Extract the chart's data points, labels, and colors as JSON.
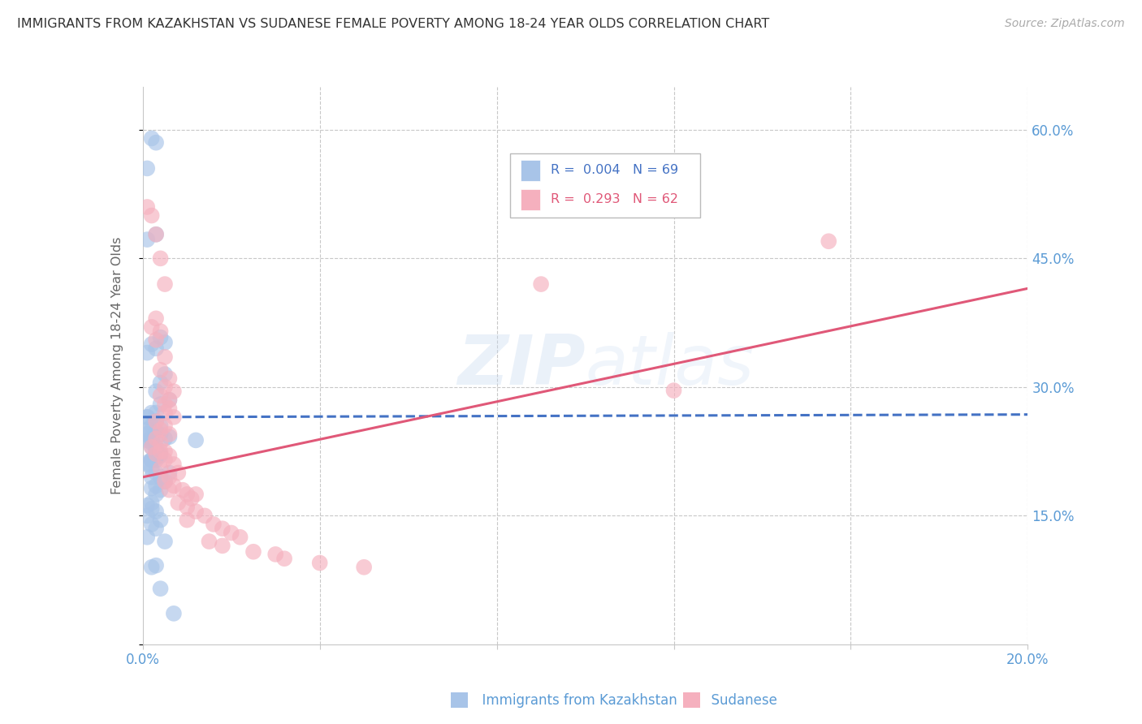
{
  "title": "IMMIGRANTS FROM KAZAKHSTAN VS SUDANESE FEMALE POVERTY AMONG 18-24 YEAR OLDS CORRELATION CHART",
  "source": "Source: ZipAtlas.com",
  "ylabel": "Female Poverty Among 18-24 Year Olds",
  "xlim": [
    0.0,
    0.2
  ],
  "ylim": [
    0.0,
    0.65
  ],
  "watermark": "ZIPatlas",
  "legend_blue_r": "0.004",
  "legend_blue_n": "69",
  "legend_pink_r": "0.293",
  "legend_pink_n": "62",
  "blue_color": "#a8c4e8",
  "pink_color": "#f5b0be",
  "blue_line_color": "#4472c4",
  "pink_line_color": "#e05878",
  "axis_label_color": "#5b9bd5",
  "grid_color": "#c8c8c8",
  "title_color": "#333333",
  "blue_trend_x": [
    0.0,
    0.2
  ],
  "blue_trend_y": [
    0.265,
    0.268
  ],
  "pink_trend_x": [
    0.0,
    0.2
  ],
  "pink_trend_y": [
    0.195,
    0.415
  ],
  "blue_scatter_x": [
    0.002,
    0.003,
    0.001,
    0.003,
    0.001,
    0.004,
    0.005,
    0.003,
    0.002,
    0.001,
    0.005,
    0.004,
    0.003,
    0.006,
    0.004,
    0.002,
    0.001,
    0.003,
    0.004,
    0.002,
    0.003,
    0.001,
    0.002,
    0.004,
    0.005,
    0.002,
    0.001,
    0.003,
    0.002,
    0.001,
    0.002,
    0.003,
    0.004,
    0.003,
    0.002,
    0.001,
    0.004,
    0.002,
    0.003,
    0.001,
    0.002,
    0.003,
    0.006,
    0.004,
    0.002,
    0.005,
    0.003,
    0.002,
    0.004,
    0.003,
    0.002,
    0.001,
    0.002,
    0.003,
    0.001,
    0.004,
    0.002,
    0.003,
    0.001,
    0.005,
    0.003,
    0.002,
    0.004,
    0.007,
    0.003,
    0.002,
    0.001,
    0.006,
    0.012
  ],
  "blue_scatter_y": [
    0.59,
    0.585,
    0.555,
    0.478,
    0.472,
    0.358,
    0.352,
    0.345,
    0.35,
    0.34,
    0.315,
    0.305,
    0.295,
    0.285,
    0.28,
    0.27,
    0.265,
    0.26,
    0.255,
    0.25,
    0.27,
    0.265,
    0.255,
    0.245,
    0.24,
    0.235,
    0.25,
    0.248,
    0.24,
    0.238,
    0.23,
    0.225,
    0.222,
    0.218,
    0.215,
    0.212,
    0.22,
    0.215,
    0.215,
    0.21,
    0.205,
    0.2,
    0.2,
    0.195,
    0.195,
    0.19,
    0.185,
    0.182,
    0.18,
    0.175,
    0.165,
    0.162,
    0.158,
    0.155,
    0.15,
    0.145,
    0.14,
    0.135,
    0.125,
    0.12,
    0.092,
    0.09,
    0.065,
    0.036,
    0.23,
    0.24,
    0.245,
    0.242,
    0.238
  ],
  "pink_scatter_x": [
    0.001,
    0.002,
    0.003,
    0.004,
    0.005,
    0.003,
    0.004,
    0.002,
    0.003,
    0.005,
    0.004,
    0.006,
    0.005,
    0.007,
    0.006,
    0.004,
    0.005,
    0.006,
    0.005,
    0.007,
    0.003,
    0.005,
    0.004,
    0.006,
    0.003,
    0.004,
    0.002,
    0.005,
    0.003,
    0.004,
    0.006,
    0.005,
    0.007,
    0.004,
    0.008,
    0.006,
    0.005,
    0.007,
    0.009,
    0.006,
    0.012,
    0.01,
    0.011,
    0.008,
    0.01,
    0.012,
    0.014,
    0.01,
    0.016,
    0.018,
    0.02,
    0.022,
    0.015,
    0.018,
    0.025,
    0.03,
    0.032,
    0.04,
    0.05,
    0.155,
    0.09,
    0.12
  ],
  "pink_scatter_y": [
    0.51,
    0.5,
    0.478,
    0.45,
    0.42,
    0.38,
    0.365,
    0.37,
    0.355,
    0.335,
    0.32,
    0.31,
    0.3,
    0.295,
    0.285,
    0.29,
    0.28,
    0.275,
    0.27,
    0.265,
    0.26,
    0.255,
    0.25,
    0.245,
    0.24,
    0.235,
    0.23,
    0.225,
    0.222,
    0.225,
    0.22,
    0.215,
    0.21,
    0.205,
    0.2,
    0.195,
    0.19,
    0.185,
    0.18,
    0.18,
    0.175,
    0.175,
    0.17,
    0.165,
    0.16,
    0.155,
    0.15,
    0.145,
    0.14,
    0.135,
    0.13,
    0.125,
    0.12,
    0.115,
    0.108,
    0.105,
    0.1,
    0.095,
    0.09,
    0.47,
    0.42,
    0.296
  ]
}
